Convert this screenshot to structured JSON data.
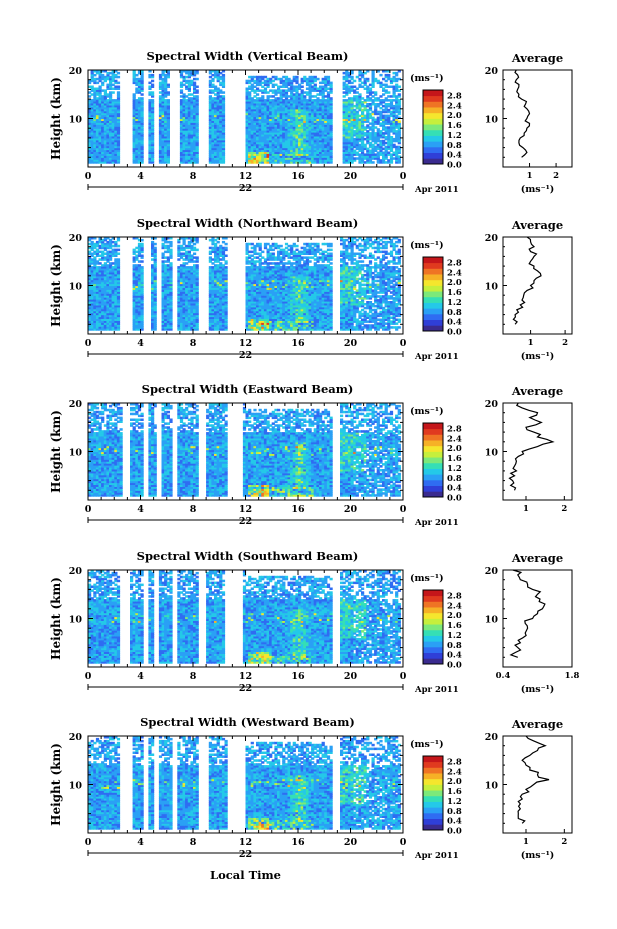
{
  "x_tick_labels": [
    "0",
    "4",
    "8",
    "12",
    "16",
    "20",
    "0"
  ],
  "date_label": "22",
  "month_label": "Apr 2011",
  "xlabel": "Local Time",
  "ylabel": "Height (km)",
  "y_tick_labels": [
    "20",
    "10"
  ],
  "colorbar": {
    "unit": "(ms⁻¹)",
    "tick_labels": [
      "2.8",
      "2.4",
      "2.0",
      "1.6",
      "1.2",
      "0.8",
      "0.4",
      "0.0"
    ],
    "colors": [
      "#3a2b8f",
      "#2f3fd8",
      "#2f6cf2",
      "#2aa0f5",
      "#24c9e8",
      "#35dfb5",
      "#7ce97a",
      "#c6ef3c",
      "#f5e62d",
      "#f6b126",
      "#ef7424",
      "#e03a1f",
      "#c5161a"
    ]
  },
  "chart_data": [
    {
      "type": "heatmap",
      "title": "Spectral Width (Vertical Beam)",
      "xlabel": "Local Time",
      "ylabel": "Height (km)",
      "xlim": [
        0,
        24
      ],
      "ylim": [
        0,
        20
      ],
      "zlim": [
        0,
        3.0
      ],
      "average": {
        "title": "Average",
        "xlabel": "(ms⁻¹)",
        "xticks": [
          "1",
          "2"
        ],
        "xlim": [
          0,
          2.6
        ],
        "profile": [
          [
            0.7,
            2
          ],
          [
            0.9,
            3
          ],
          [
            0.75,
            4
          ],
          [
            0.6,
            5
          ],
          [
            0.65,
            6
          ],
          [
            0.8,
            7
          ],
          [
            0.9,
            8
          ],
          [
            1.0,
            9
          ],
          [
            0.9,
            10
          ],
          [
            1.0,
            11
          ],
          [
            0.9,
            12
          ],
          [
            0.85,
            13
          ],
          [
            0.7,
            14
          ],
          [
            0.6,
            15
          ],
          [
            0.55,
            16
          ],
          [
            0.6,
            17
          ],
          [
            0.5,
            18
          ],
          [
            0.55,
            19
          ],
          [
            0.5,
            20
          ]
        ]
      }
    },
    {
      "type": "heatmap",
      "title": "Spectral Width (Northward Beam)",
      "xlabel": "Local Time",
      "ylabel": "Height (km)",
      "xlim": [
        0,
        24
      ],
      "ylim": [
        0,
        20
      ],
      "zlim": [
        0,
        3.0
      ],
      "average": {
        "title": "Average",
        "xlabel": "(ms⁻¹)",
        "xticks": [
          "1",
          "2"
        ],
        "xlim": [
          0.2,
          2.2
        ],
        "profile": [
          [
            0.55,
            2
          ],
          [
            0.5,
            3
          ],
          [
            0.55,
            4
          ],
          [
            0.6,
            5
          ],
          [
            0.7,
            6
          ],
          [
            0.75,
            7
          ],
          [
            0.8,
            8
          ],
          [
            0.9,
            9
          ],
          [
            1.0,
            10
          ],
          [
            1.1,
            11
          ],
          [
            1.3,
            12
          ],
          [
            1.2,
            13
          ],
          [
            1.1,
            14
          ],
          [
            1.0,
            15
          ],
          [
            1.1,
            16
          ],
          [
            1.0,
            17
          ],
          [
            1.1,
            18
          ],
          [
            1.0,
            19
          ],
          [
            0.9,
            20
          ]
        ]
      }
    },
    {
      "type": "heatmap",
      "title": "Spectral Width (Eastward Beam)",
      "xlabel": "Local Time",
      "ylabel": "Height (km)",
      "xlim": [
        0,
        24
      ],
      "ylim": [
        0,
        20
      ],
      "zlim": [
        0,
        3.0
      ],
      "average": {
        "title": "Average",
        "xlabel": "",
        "xticks": [
          "1",
          "2"
        ],
        "xlim": [
          0.4,
          2.2
        ],
        "profile": [
          [
            0.7,
            2
          ],
          [
            0.6,
            3
          ],
          [
            0.65,
            4
          ],
          [
            0.7,
            5
          ],
          [
            0.75,
            6
          ],
          [
            0.7,
            7
          ],
          [
            0.75,
            8
          ],
          [
            0.8,
            9
          ],
          [
            0.9,
            10
          ],
          [
            1.3,
            11
          ],
          [
            1.7,
            12
          ],
          [
            1.3,
            13
          ],
          [
            1.2,
            14
          ],
          [
            1.0,
            15
          ],
          [
            1.4,
            16
          ],
          [
            1.1,
            17
          ],
          [
            1.3,
            18
          ],
          [
            0.9,
            19
          ],
          [
            0.8,
            20
          ]
        ]
      }
    },
    {
      "type": "heatmap",
      "title": "Spectral Width (Southward Beam)",
      "xlabel": "Local Time",
      "ylabel": "Height (km)",
      "xlim": [
        0,
        24
      ],
      "ylim": [
        0,
        20
      ],
      "zlim": [
        0,
        3.0
      ],
      "average": {
        "title": "Average",
        "xlabel": "(ms⁻¹)",
        "xticks": [
          "0.4",
          "1.8"
        ],
        "xlim": [
          0.4,
          1.8
        ],
        "profile": [
          [
            0.7,
            2
          ],
          [
            0.65,
            3
          ],
          [
            0.7,
            4
          ],
          [
            0.75,
            5
          ],
          [
            0.8,
            6
          ],
          [
            0.85,
            7
          ],
          [
            0.9,
            8
          ],
          [
            0.85,
            9
          ],
          [
            1.0,
            10
          ],
          [
            1.1,
            11
          ],
          [
            1.2,
            12
          ],
          [
            1.25,
            13
          ],
          [
            1.15,
            14
          ],
          [
            1.1,
            15
          ],
          [
            1.0,
            16
          ],
          [
            0.9,
            17
          ],
          [
            0.75,
            18
          ],
          [
            0.7,
            19
          ],
          [
            0.6,
            20
          ]
        ]
      }
    },
    {
      "type": "heatmap",
      "title": "Spectral Width (Westward Beam)",
      "xlabel": "Local Time",
      "ylabel": "Height (km)",
      "xlim": [
        0,
        24
      ],
      "ylim": [
        0,
        20
      ],
      "zlim": [
        0,
        3.0
      ],
      "average": {
        "title": "Average",
        "xlabel": "(ms⁻¹)",
        "xticks": [
          "1",
          "2"
        ],
        "xlim": [
          0.4,
          2.2
        ],
        "profile": [
          [
            0.9,
            2
          ],
          [
            0.8,
            3
          ],
          [
            0.8,
            4
          ],
          [
            0.85,
            5
          ],
          [
            0.85,
            6
          ],
          [
            0.9,
            7
          ],
          [
            0.9,
            8
          ],
          [
            1.0,
            9
          ],
          [
            1.2,
            10
          ],
          [
            1.6,
            11
          ],
          [
            1.3,
            12
          ],
          [
            1.1,
            13
          ],
          [
            1.0,
            14
          ],
          [
            0.9,
            15
          ],
          [
            1.1,
            16
          ],
          [
            1.3,
            17
          ],
          [
            1.5,
            18
          ],
          [
            1.2,
            19
          ],
          [
            1.0,
            20
          ]
        ]
      }
    }
  ]
}
